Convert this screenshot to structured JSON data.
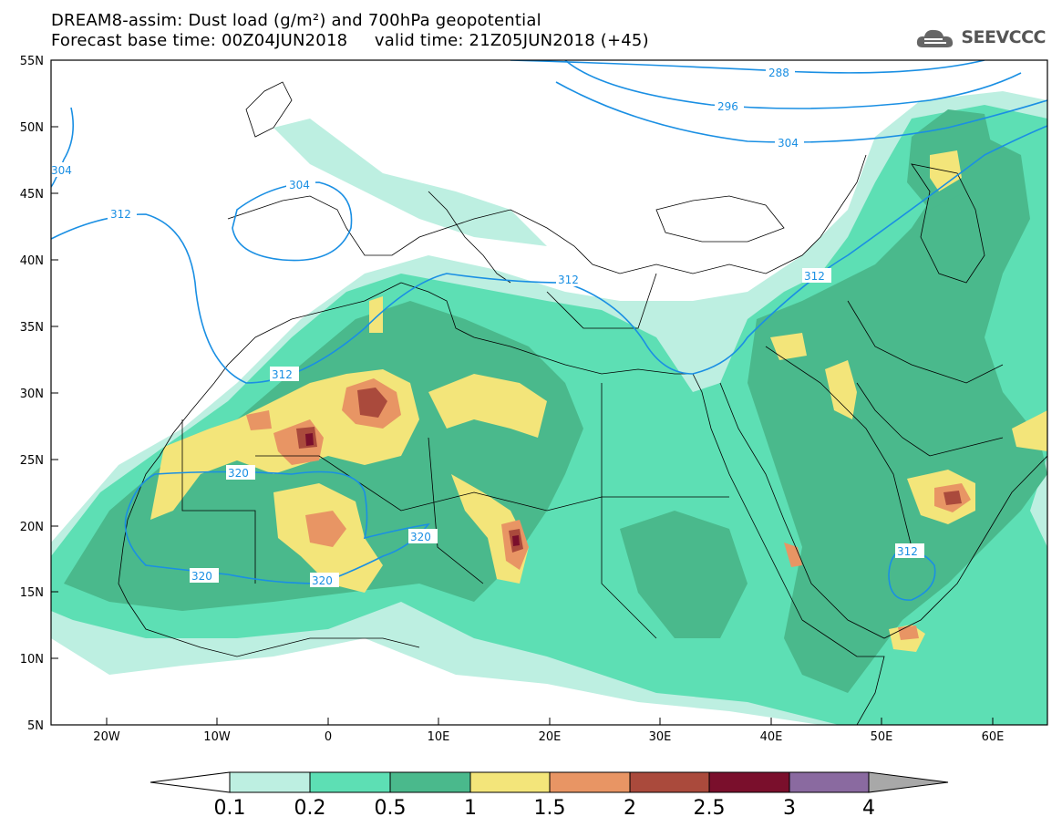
{
  "title": {
    "line1": "DREAM8-assim: Dust load (g/m²) and 700hPa geopotential",
    "line2": "Forecast base time: 00Z04JUN2018     valid time: 21Z05JUN2018 (+45)"
  },
  "logo": {
    "text": "SEEVCCC",
    "icon": "cloud-icon"
  },
  "map": {
    "lon_range": [
      -25,
      65
    ],
    "lat_range": [
      5,
      55
    ],
    "lon_ticks": [
      "20W",
      "10W",
      "0",
      "10E",
      "20E",
      "30E",
      "40E",
      "50E",
      "60E"
    ],
    "lat_ticks": [
      "55N",
      "50N",
      "45N",
      "40N",
      "35N",
      "30N",
      "25N",
      "20N",
      "15N",
      "10N",
      "5N"
    ],
    "contour_labels": [
      "288",
      "296",
      "304",
      "304",
      "312",
      "304",
      "312",
      "312",
      "312",
      "320",
      "320",
      "320",
      "320",
      "312"
    ]
  },
  "colorbar": {
    "labels": [
      "0.1",
      "0.2",
      "0.5",
      "1",
      "1.5",
      "2",
      "2.5",
      "3",
      "4"
    ],
    "colors": [
      "#bdefe1",
      "#5ddfb4",
      "#4ab98c",
      "#f3e57a",
      "#e89564",
      "#aa4a3c",
      "#7a0f2c",
      "#8a6aa0",
      "#a8a8a8"
    ]
  },
  "colors": {
    "contour": "#1a8fe3",
    "coast": "#000000"
  }
}
